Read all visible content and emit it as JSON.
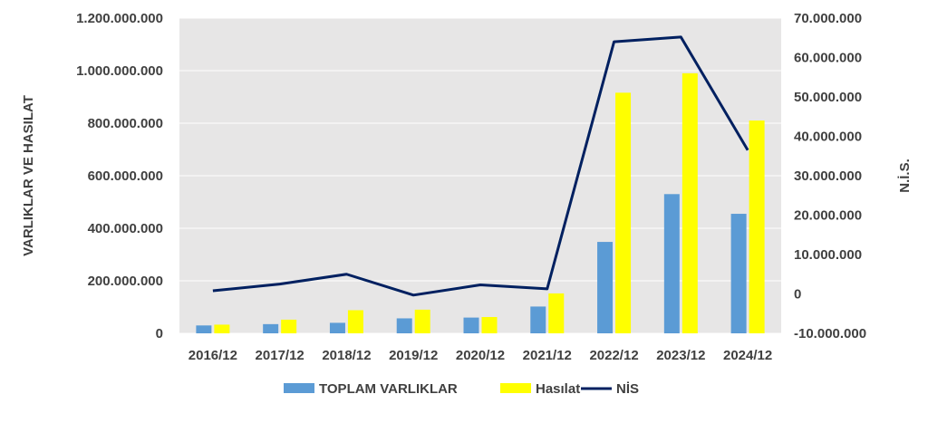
{
  "chart_data": {
    "type": "bar",
    "categories": [
      "2016/12",
      "2017/12",
      "2018/12",
      "2019/12",
      "2020/12",
      "2021/12",
      "2022/12",
      "2023/12",
      "2024/12"
    ],
    "series": [
      {
        "name": "TOPLAM VARLIKLAR",
        "type": "bar",
        "axis": "left",
        "color": "#5B9BD5",
        "values": [
          30000000,
          35000000,
          40000000,
          57000000,
          60000000,
          102000000,
          348000000,
          530000000,
          455000000
        ]
      },
      {
        "name": "Hasılat",
        "type": "bar",
        "axis": "left",
        "color": "#FFFF00",
        "values": [
          33000000,
          52000000,
          88000000,
          90000000,
          62000000,
          152000000,
          916000000,
          990000000,
          810000000
        ]
      },
      {
        "name": "NİS",
        "type": "line",
        "axis": "right",
        "color": "#002060",
        "values": [
          800000,
          2500000,
          5000000,
          -300000,
          2300000,
          1300000,
          64000000,
          65200000,
          36500000
        ]
      }
    ],
    "ylabel": "VARLIKLAR VE HASILAT",
    "y2label": "N.İ.S.",
    "ylim": [
      0,
      1200000000
    ],
    "y2lim": [
      -10000000,
      70000000
    ],
    "yticks": [
      "0",
      "200.000.000",
      "400.000.000",
      "600.000.000",
      "800.000.000",
      "1.000.000.000",
      "1.200.000.000"
    ],
    "y2ticks": [
      "-10.000.000",
      "0",
      "10.000.000",
      "20.000.000",
      "30.000.000",
      "40.000.000",
      "50.000.000",
      "60.000.000",
      "70.000.000"
    ],
    "grid": true,
    "legend": "bottom",
    "plot_background": "#E7E6E6"
  }
}
